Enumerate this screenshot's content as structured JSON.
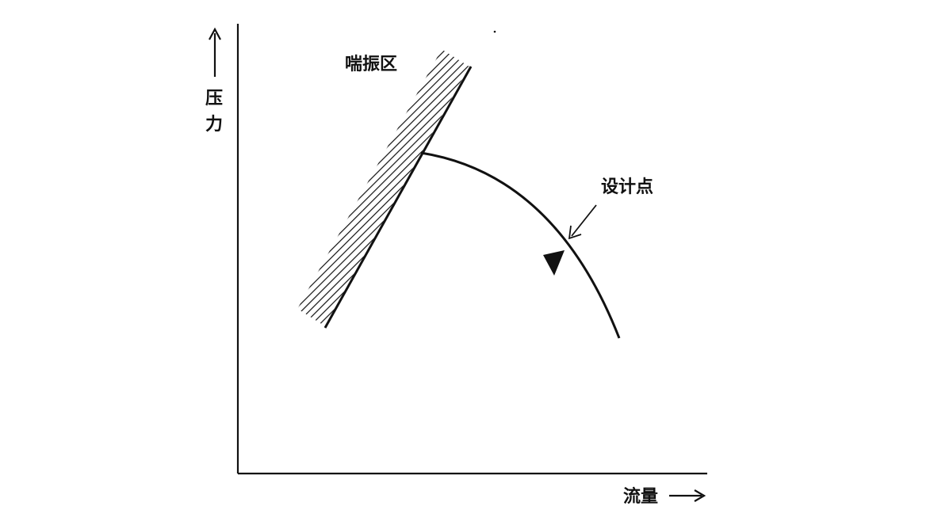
{
  "diagram": {
    "labels": {
      "surge_zone": "喘振区",
      "design_point": "设计点",
      "pressure_line1": "压",
      "pressure_line2": "力",
      "flow": "流量"
    },
    "colors": {
      "ink": "#111111",
      "background": "#ffffff"
    }
  }
}
